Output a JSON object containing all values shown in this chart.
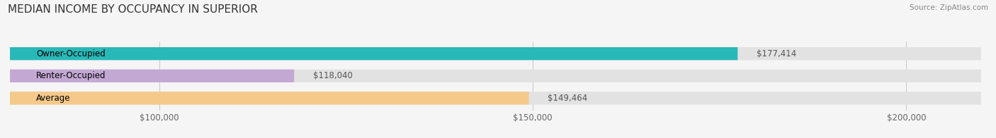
{
  "title": "MEDIAN INCOME BY OCCUPANCY IN SUPERIOR",
  "source": "Source: ZipAtlas.com",
  "categories": [
    "Owner-Occupied",
    "Renter-Occupied",
    "Average"
  ],
  "values": [
    177414,
    118040,
    149464
  ],
  "bar_colors": [
    "#29b8b8",
    "#c4a8d4",
    "#f5c98a"
  ],
  "bar_labels": [
    "$177,414",
    "$118,040",
    "$149,464"
  ],
  "xlim_min": 80000,
  "xlim_max": 210000,
  "xticks": [
    100000,
    150000,
    200000
  ],
  "xtick_labels": [
    "$100,000",
    "$150,000",
    "$200,000"
  ],
  "background_color": "#f5f5f5",
  "bar_background_color": "#e2e2e2",
  "bar_height": 0.58,
  "title_fontsize": 11,
  "label_fontsize": 8.5,
  "tick_fontsize": 8.5
}
